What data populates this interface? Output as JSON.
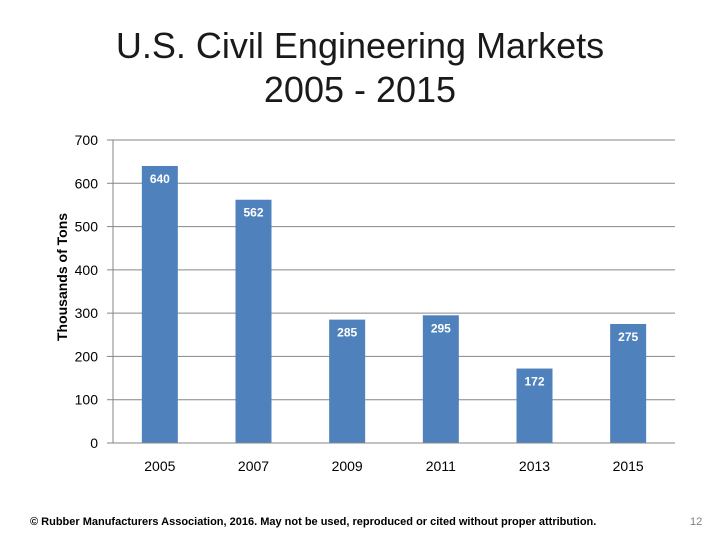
{
  "chart_data": {
    "type": "bar",
    "title_lines": [
      "U.S. Civil Engineering Markets",
      "2005 - 2015"
    ],
    "ylabel": "Thousands of Tons",
    "xlabel": "",
    "categories": [
      "2005",
      "2007",
      "2009",
      "2011",
      "2013",
      "2015"
    ],
    "values": [
      640,
      562,
      285,
      295,
      172,
      275
    ],
    "data_labels": [
      "640",
      "562",
      "285",
      "295",
      "172",
      "275"
    ],
    "ylim": [
      0,
      700
    ],
    "yticks": [
      "0",
      "100",
      "200",
      "300",
      "400",
      "500",
      "600",
      "700"
    ],
    "grid": true,
    "legend": "none",
    "bar_color": "#4f81bd"
  },
  "footer": {
    "copyright": "© Rubber Manufacturers Association, 2016.  May not be used, reproduced or cited without proper attribution.",
    "page_number": "12"
  }
}
